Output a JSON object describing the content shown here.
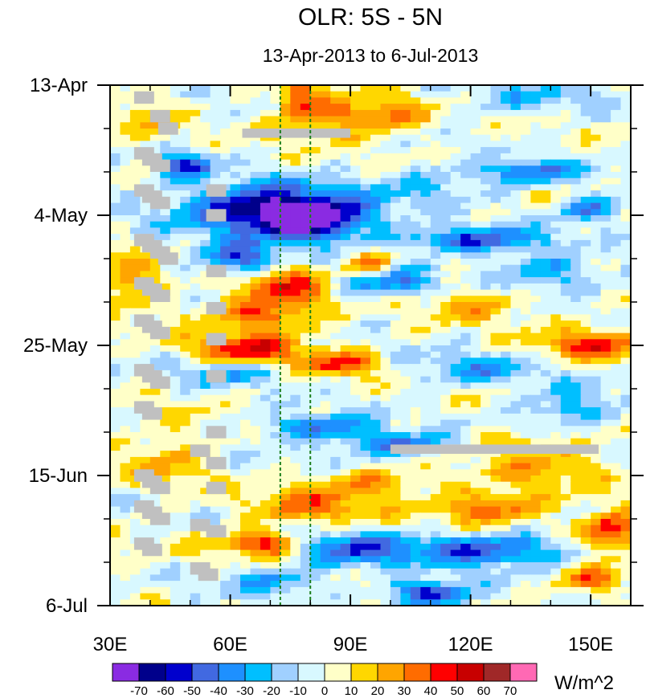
{
  "chart_data": {
    "type": "heatmap",
    "title": "OLR: 5S - 5N",
    "subtitle": "13-Apr-2013 to 6-Jul-2013",
    "x_ticks": [
      {
        "value": 30,
        "label": "30E"
      },
      {
        "value": 60,
        "label": "60E"
      },
      {
        "value": 90,
        "label": "90E"
      },
      {
        "value": 120,
        "label": "120E"
      },
      {
        "value": 150,
        "label": "150E"
      }
    ],
    "xlim": [
      30,
      160
    ],
    "y_ticks": [
      {
        "day": 0,
        "label": "13-Apr"
      },
      {
        "day": 21,
        "label": "4-May"
      },
      {
        "day": 42,
        "label": "25-May"
      },
      {
        "day": 63,
        "label": "15-Jun"
      },
      {
        "day": 84,
        "label": "6-Jul"
      }
    ],
    "ylim_days": [
      0,
      84
    ],
    "reference_lines_lon": [
      72.5,
      80
    ],
    "colorbar": {
      "levels": [
        -70,
        -60,
        -50,
        -40,
        -30,
        -20,
        -10,
        0,
        10,
        20,
        30,
        40,
        50,
        60,
        70
      ],
      "level_labels": [
        "-70",
        "-60",
        "-50",
        "-40",
        "-30",
        "-20",
        "-10",
        "0",
        "10",
        "20",
        "30",
        "40",
        "50",
        "60",
        "70"
      ],
      "colors": [
        "#8a2be2",
        "#00008b",
        "#0000cd",
        "#4169e1",
        "#1e90ff",
        "#00bfff",
        "#a0d0ff",
        "#d8f8ff",
        "#ffffc8",
        "#ffd700",
        "#ffa500",
        "#ff6c00",
        "#ff0000",
        "#c80000",
        "#a02828",
        "#ff69b4"
      ],
      "units": "W/m^2"
    },
    "missing_color": "#c0c0c0",
    "missing_regions": [
      {
        "lon": [
          63,
          90
        ],
        "day": [
          7,
          8.5
        ]
      },
      {
        "lon": [
          100,
          152
        ],
        "day": [
          58,
          59.5
        ]
      }
    ],
    "anomaly_features": [
      {
        "lon": 70,
        "day": 20,
        "value": -70,
        "rx": 22,
        "ry": 4
      },
      {
        "lon": 80,
        "day": 22,
        "value": -60,
        "rx": 12,
        "ry": 3
      },
      {
        "lon": 48,
        "day": 13,
        "value": -50,
        "rx": 7,
        "ry": 2
      },
      {
        "lon": 62,
        "day": 28,
        "value": -50,
        "rx": 10,
        "ry": 2.5
      },
      {
        "lon": 120,
        "day": 25,
        "value": -50,
        "rx": 18,
        "ry": 2
      },
      {
        "lon": 135,
        "day": 14,
        "value": -40,
        "rx": 12,
        "ry": 2
      },
      {
        "lon": 150,
        "day": 20,
        "value": -40,
        "rx": 8,
        "ry": 2
      },
      {
        "lon": 105,
        "day": 58,
        "value": -50,
        "rx": 18,
        "ry": 2
      },
      {
        "lon": 125,
        "day": 75,
        "value": -50,
        "rx": 20,
        "ry": 2.5
      },
      {
        "lon": 110,
        "day": 82,
        "value": -60,
        "rx": 10,
        "ry": 2
      },
      {
        "lon": 140,
        "day": 30,
        "value": -30,
        "rx": 14,
        "ry": 3
      },
      {
        "lon": 120,
        "day": 46,
        "value": -30,
        "rx": 16,
        "ry": 2.5
      },
      {
        "lon": 145,
        "day": 52,
        "value": -30,
        "rx": 12,
        "ry": 3
      },
      {
        "lon": 90,
        "day": 75,
        "value": -40,
        "rx": 15,
        "ry": 3
      },
      {
        "lon": 70,
        "day": 80,
        "value": -30,
        "rx": 12,
        "ry": 2
      },
      {
        "lon": 60,
        "day": 46,
        "value": -30,
        "rx": 15,
        "ry": 2.5
      },
      {
        "lon": 82,
        "day": 55,
        "value": -40,
        "rx": 14,
        "ry": 2
      },
      {
        "lon": 100,
        "day": 32,
        "value": -40,
        "rx": 12,
        "ry": 2.5
      },
      {
        "lon": 77,
        "day": 2,
        "value": 40,
        "rx": 5,
        "ry": 3
      },
      {
        "lon": 85,
        "day": 5,
        "value": 30,
        "rx": 10,
        "ry": 3
      },
      {
        "lon": 74,
        "day": 32,
        "value": 40,
        "rx": 10,
        "ry": 3
      },
      {
        "lon": 68,
        "day": 37,
        "value": 40,
        "rx": 14,
        "ry": 3
      },
      {
        "lon": 64,
        "day": 43,
        "value": 50,
        "rx": 14,
        "ry": 2.5
      },
      {
        "lon": 88,
        "day": 45,
        "value": 40,
        "rx": 10,
        "ry": 2
      },
      {
        "lon": 35,
        "day": 32,
        "value": 30,
        "rx": 8,
        "ry": 4
      },
      {
        "lon": 95,
        "day": 29,
        "value": 40,
        "rx": 6,
        "ry": 2
      },
      {
        "lon": 68,
        "day": 74,
        "value": 50,
        "rx": 10,
        "ry": 2
      },
      {
        "lon": 80,
        "day": 68,
        "value": 30,
        "rx": 16,
        "ry": 3
      },
      {
        "lon": 95,
        "day": 64,
        "value": 30,
        "rx": 12,
        "ry": 2
      },
      {
        "lon": 125,
        "day": 68,
        "value": 40,
        "rx": 14,
        "ry": 2.5
      },
      {
        "lon": 155,
        "day": 72,
        "value": 50,
        "rx": 8,
        "ry": 3
      },
      {
        "lon": 150,
        "day": 42,
        "value": 40,
        "rx": 12,
        "ry": 2.5
      },
      {
        "lon": 100,
        "day": 5,
        "value": 30,
        "rx": 10,
        "ry": 3
      },
      {
        "lon": 150,
        "day": 80,
        "value": 40,
        "rx": 8,
        "ry": 2
      },
      {
        "lon": 125,
        "day": 58,
        "value": 30,
        "rx": 20,
        "ry": 2
      },
      {
        "lon": 40,
        "day": 6,
        "value": 20,
        "rx": 6,
        "ry": 4
      },
      {
        "lon": 45,
        "day": 60,
        "value": 20,
        "rx": 10,
        "ry": 5
      },
      {
        "lon": 120,
        "day": 35,
        "value": 20,
        "rx": 15,
        "ry": 3
      },
      {
        "lon": 140,
        "day": 62,
        "value": 20,
        "rx": 15,
        "ry": 3
      },
      {
        "lon": 135,
        "day": 2,
        "value": -20,
        "rx": 20,
        "ry": 3
      },
      {
        "lon": 110,
        "day": 16,
        "value": -20,
        "rx": 15,
        "ry": 3
      }
    ]
  }
}
